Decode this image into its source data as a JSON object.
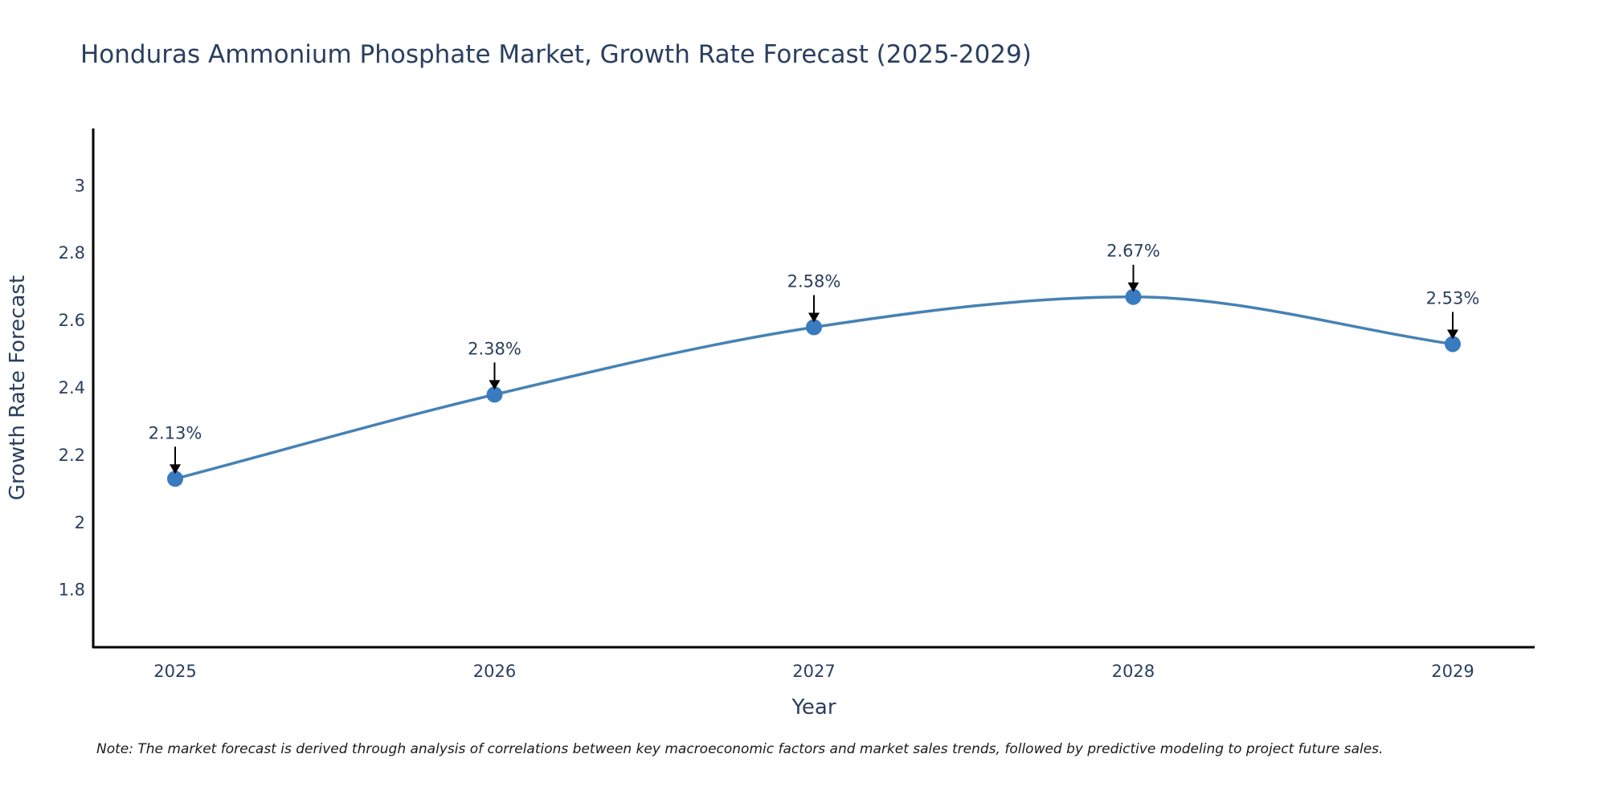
{
  "chart_data": {
    "type": "line",
    "title": "Honduras Ammonium Phosphate Market, Growth Rate Forecast (2025-2029)",
    "xlabel": "Year",
    "ylabel": "Growth Rate Forecast",
    "categories": [
      "2025",
      "2026",
      "2027",
      "2028",
      "2029"
    ],
    "series": [
      {
        "name": "Growth Rate Forecast",
        "values": [
          2.13,
          2.38,
          2.58,
          2.67,
          2.53
        ],
        "data_labels": [
          "2.13%",
          "2.38%",
          "2.58%",
          "2.67%",
          "2.53%"
        ]
      }
    ],
    "ylim": [
      1.63,
      3.17
    ],
    "yticks": [
      1.8,
      2,
      2.2,
      2.4,
      2.6,
      2.8,
      3
    ],
    "ytick_labels": [
      "1.8",
      "2",
      "2.2",
      "2.4",
      "2.6",
      "2.8",
      "3"
    ],
    "grid": false,
    "line_shape": "spline",
    "note": "Note: The market forecast is derived through analysis of correlations between key macroeconomic factors and market sales trends, followed by predictive modeling to project future sales."
  },
  "colors": {
    "line": "#4682b4",
    "marker": "#3a7bbf",
    "axis": "#000000",
    "text": "#2a3f5f",
    "arrow": "#000000"
  }
}
